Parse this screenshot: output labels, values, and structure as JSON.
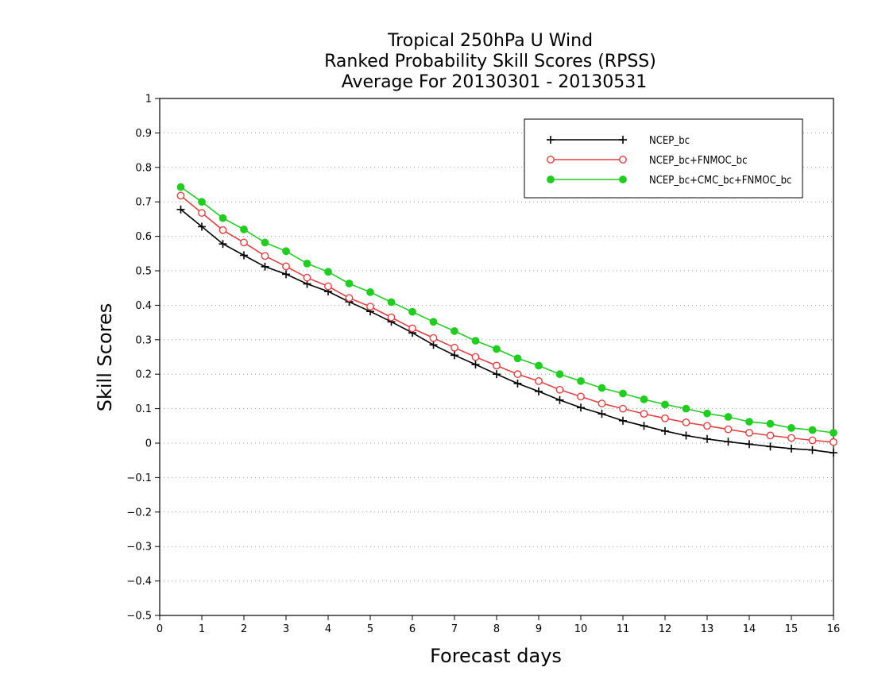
{
  "chart_data": {
    "type": "line",
    "title_lines": [
      "Tropical 250hPa U Wind",
      "Ranked Probability Skill Scores (RPSS)",
      "Average For 20130301 - 20130531"
    ],
    "xlabel": "Forecast days",
    "ylabel": "Skill Scores",
    "xlim": [
      0,
      16
    ],
    "ylim": [
      -0.5,
      1
    ],
    "x_ticks": [
      0,
      1,
      2,
      3,
      4,
      5,
      6,
      7,
      8,
      9,
      10,
      11,
      12,
      13,
      14,
      15,
      16
    ],
    "x_tick_labels": [
      "0",
      "1",
      "2",
      "3",
      "4",
      "5",
      "6",
      "7",
      "8",
      "9",
      "10",
      "11",
      "12",
      "13",
      "14",
      "15",
      "16"
    ],
    "y_ticks": [
      -0.5,
      -0.4,
      -0.3,
      -0.2,
      -0.1,
      0,
      0.1,
      0.2,
      0.3,
      0.4,
      0.5,
      0.6,
      0.7,
      0.8,
      0.9,
      1
    ],
    "y_tick_labels": [
      "−0.5",
      "−0.4",
      "−0.3",
      "−0.2",
      "−0.1",
      "0",
      "0.1",
      "0.2",
      "0.3",
      "0.4",
      "0.5",
      "0.6",
      "0.7",
      "0.8",
      "0.9",
      "1"
    ],
    "grid": "horizontal-dotted",
    "legend_position": "top-right",
    "x": [
      0.5,
      1,
      1.5,
      2,
      2.5,
      3,
      3.5,
      4,
      4.5,
      5,
      5.5,
      6,
      6.5,
      7,
      7.5,
      8,
      8.5,
      9,
      9.5,
      10,
      10.5,
      11,
      11.5,
      12,
      12.5,
      13,
      13.5,
      14,
      14.5,
      15,
      15.5,
      16
    ],
    "series": [
      {
        "name": "NCEP_bc",
        "color": "#000000",
        "marker": "plus",
        "values": [
          0.678,
          0.628,
          0.578,
          0.545,
          0.512,
          0.49,
          0.462,
          0.44,
          0.41,
          0.382,
          0.352,
          0.32,
          0.285,
          0.255,
          0.228,
          0.2,
          0.173,
          0.15,
          0.125,
          0.103,
          0.085,
          0.065,
          0.05,
          0.035,
          0.022,
          0.012,
          0.004,
          -0.003,
          -0.01,
          -0.016,
          -0.02,
          -0.028
        ]
      },
      {
        "name": "NCEP_bc+FNMOC_bc",
        "color": "#e04040",
        "marker": "open-circle",
        "values": [
          0.718,
          0.668,
          0.618,
          0.582,
          0.543,
          0.513,
          0.48,
          0.455,
          0.421,
          0.396,
          0.365,
          0.333,
          0.305,
          0.277,
          0.25,
          0.225,
          0.2,
          0.18,
          0.155,
          0.135,
          0.115,
          0.1,
          0.085,
          0.072,
          0.06,
          0.05,
          0.04,
          0.03,
          0.022,
          0.015,
          0.008,
          0.003
        ]
      },
      {
        "name": "NCEP_bc+CMC_bc+FNMOC_bc",
        "color": "#22cc22",
        "marker": "filled-circle",
        "values": [
          0.743,
          0.7,
          0.653,
          0.62,
          0.582,
          0.557,
          0.521,
          0.497,
          0.463,
          0.438,
          0.409,
          0.381,
          0.352,
          0.325,
          0.297,
          0.273,
          0.246,
          0.225,
          0.2,
          0.18,
          0.16,
          0.144,
          0.127,
          0.112,
          0.1,
          0.086,
          0.076,
          0.062,
          0.056,
          0.044,
          0.038,
          0.03
        ]
      }
    ]
  }
}
